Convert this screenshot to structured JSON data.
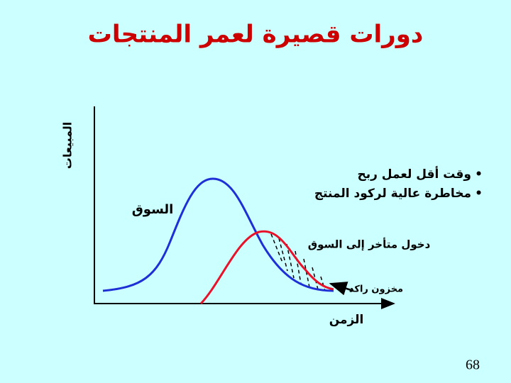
{
  "title": "دورات قصيرة لعمر المنتجات",
  "y_axis_label": "المبيعات",
  "x_axis_label": "الزمن",
  "curve_label": "السوق",
  "bullets": [
    "وقت أقل لعمل ربح",
    "مخاطرة عالية لركود المنتج"
  ],
  "annotations": {
    "late_entry": "دخول متأخر إلى السوق",
    "stagnant_stock": "مخزون راكد"
  },
  "page_number": "68"
}
